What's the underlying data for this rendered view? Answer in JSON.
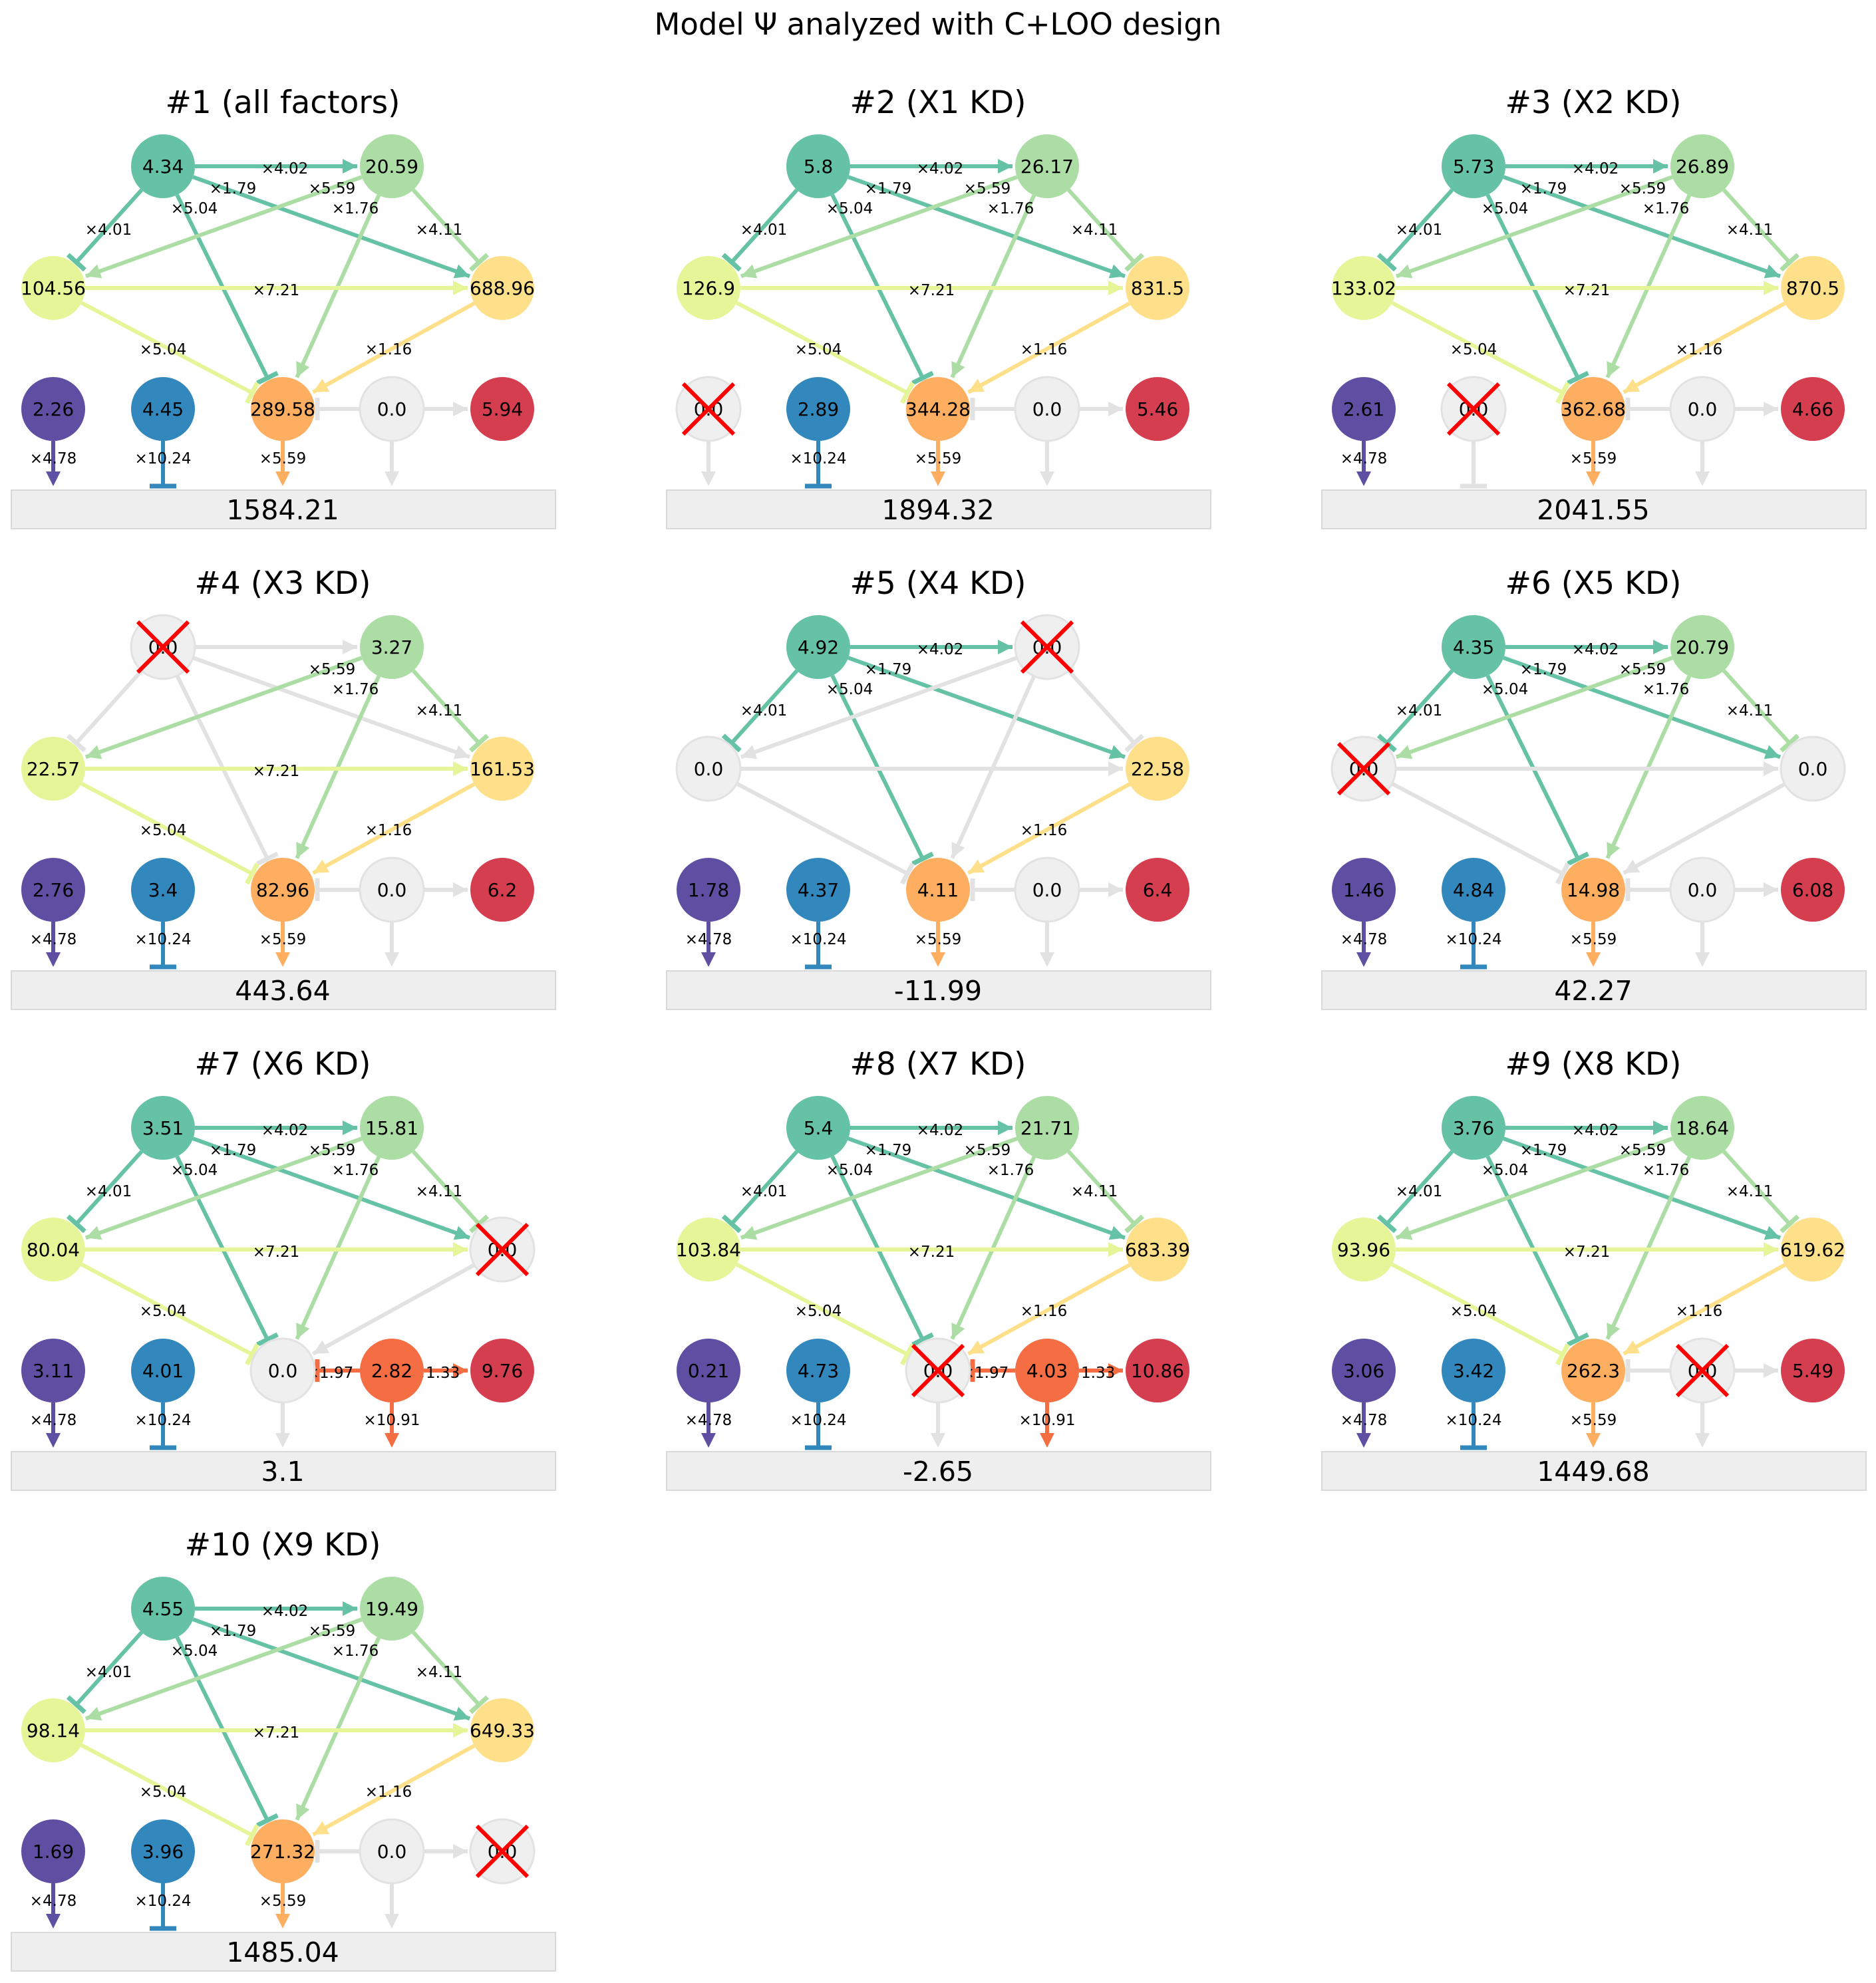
{
  "title": "Model Ψ analyzed with C+LOO design",
  "colors": {
    "n0": "#66c2a5",
    "n1": "#abdda4",
    "n2": "#e6f598",
    "n3": "#fee08b",
    "n4": "#fdae61",
    "n5": "#f46d43",
    "n6": "#d53e4f",
    "n7": "#5e4fa2",
    "n8": "#3288bd",
    "inactive": "#e2e2e2",
    "ko": "#ff0000",
    "output_box": "#eeeeee"
  },
  "edge_labels": {
    "e01": "×4.02",
    "e02": "×4.01",
    "e03": "×1.79",
    "e04": "×5.04",
    "e12": "×5.59",
    "e13": "×4.11",
    "e14": "×1.76",
    "e23": "×7.21",
    "e24": "×5.04",
    "e34": "×1.16",
    "e54": "×1.97",
    "e56": "×1.33",
    "e4out": "×5.59",
    "e5out": "×10.91",
    "e7out": "×4.78",
    "e8out": "×10.24"
  },
  "panels": [
    {
      "title": "#1 (all factors)",
      "knockout": null,
      "nodes": [
        "4.34",
        "20.59",
        "104.56",
        "688.96",
        "289.58",
        "0.0",
        "5.94",
        "2.26",
        "4.45"
      ],
      "output": "1584.21"
    },
    {
      "title": "#2 (X1 KD)",
      "knockout": 7,
      "nodes": [
        "5.8",
        "26.17",
        "126.9",
        "831.5",
        "344.28",
        "0.0",
        "5.46",
        "0.0",
        "2.89"
      ],
      "output": "1894.32"
    },
    {
      "title": "#3 (X2 KD)",
      "knockout": 8,
      "nodes": [
        "5.73",
        "26.89",
        "133.02",
        "870.5",
        "362.68",
        "0.0",
        "4.66",
        "2.61",
        "0.0"
      ],
      "output": "2041.55"
    },
    {
      "title": "#4 (X3 KD)",
      "knockout": 0,
      "nodes": [
        "0.0",
        "3.27",
        "22.57",
        "161.53",
        "82.96",
        "0.0",
        "6.2",
        "2.76",
        "3.4"
      ],
      "output": "443.64"
    },
    {
      "title": "#5 (X4 KD)",
      "knockout": 1,
      "nodes": [
        "4.92",
        "0.0",
        "0.0",
        "22.58",
        "4.11",
        "0.0",
        "6.4",
        "1.78",
        "4.37"
      ],
      "output": "-11.99"
    },
    {
      "title": "#6 (X5 KD)",
      "knockout": 2,
      "nodes": [
        "4.35",
        "20.79",
        "0.0",
        "0.0",
        "14.98",
        "0.0",
        "6.08",
        "1.46",
        "4.84"
      ],
      "output": "42.27"
    },
    {
      "title": "#7 (X6 KD)",
      "knockout": 3,
      "nodes": [
        "3.51",
        "15.81",
        "80.04",
        "0.0",
        "0.0",
        "2.82",
        "9.76",
        "3.11",
        "4.01"
      ],
      "output": "3.1"
    },
    {
      "title": "#8 (X7 KD)",
      "knockout": 4,
      "nodes": [
        "5.4",
        "21.71",
        "103.84",
        "683.39",
        "0.0",
        "4.03",
        "10.86",
        "0.21",
        "4.73"
      ],
      "output": "-2.65"
    },
    {
      "title": "#9 (X8 KD)",
      "knockout": 5,
      "nodes": [
        "3.76",
        "18.64",
        "93.96",
        "619.62",
        "262.3",
        "0.0",
        "5.49",
        "3.06",
        "3.42"
      ],
      "output": "1449.68"
    },
    {
      "title": "#10 (X9 KD)",
      "knockout": 6,
      "nodes": [
        "4.55",
        "19.49",
        "98.14",
        "649.33",
        "271.32",
        "0.0",
        "0.0",
        "1.69",
        "3.96"
      ],
      "output": "1485.04"
    }
  ]
}
